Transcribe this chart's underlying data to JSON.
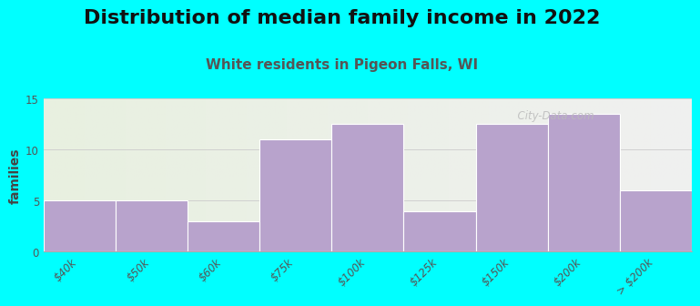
{
  "title": "Distribution of median family income in 2022",
  "subtitle": "White residents in Pigeon Falls, WI",
  "ylabel": "families",
  "categories": [
    "$40k",
    "$50k",
    "$60k",
    "$75k",
    "$100k",
    "$125k",
    "$150k",
    "$200k",
    "> $200k"
  ],
  "values": [
    5,
    5,
    3,
    11,
    12.5,
    4,
    12.5,
    13.5,
    6
  ],
  "bar_color": "#b8a3cc",
  "background_color": "#00FFFF",
  "plot_bg_color_left": "#e8f0e0",
  "plot_bg_color_right": "#f0f0f0",
  "ylim": [
    0,
    15
  ],
  "yticks": [
    0,
    5,
    10,
    15
  ],
  "title_fontsize": 16,
  "subtitle_fontsize": 11,
  "subtitle_color": "#555555",
  "ylabel_fontsize": 10,
  "watermark_text": "  City-Data.com",
  "bar_edge_color": "#ffffff",
  "tick_fontsize": 8.5,
  "tick_color": "#555555"
}
